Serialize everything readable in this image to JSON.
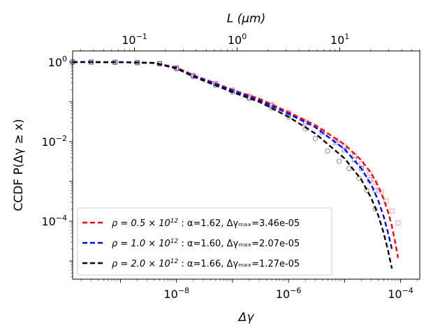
{
  "chart_data": {
    "type": "scatter",
    "xlabel": "Δγ",
    "ylabel": "CCDF  P(Δγ ≥ x)",
    "x2label": "L (μm)",
    "xscale": "log",
    "yscale": "log",
    "x2scale": "log",
    "xlim": [
      1.4e-10,
      0.00022
    ],
    "ylim": [
      3.5e-06,
      1.9
    ],
    "x2lim": [
      0.025,
      60
    ],
    "xticks": [
      {
        "value": 1e-08,
        "base": "10",
        "exp": "−8"
      },
      {
        "value": 1e-06,
        "base": "10",
        "exp": "−6"
      },
      {
        "value": 0.0001,
        "base": "10",
        "exp": "−4"
      }
    ],
    "yticks": [
      {
        "value": 1,
        "base": "10",
        "exp": "0"
      },
      {
        "value": 0.01,
        "base": "10",
        "exp": "−2"
      },
      {
        "value": 0.0001,
        "base": "10",
        "exp": "−4"
      }
    ],
    "x2ticks": [
      {
        "value": 0.1,
        "base": "10",
        "exp": "−1"
      },
      {
        "value": 1,
        "base": "10",
        "exp": "0"
      },
      {
        "value": 10,
        "base": "10",
        "exp": "1"
      }
    ],
    "legend_position": "lower-left",
    "series": [
      {
        "name": "ρ = 0.5 × 10¹² : α=1.62, Δγₘₐₓ=3.46e-05",
        "legend": {
          "rho_prefix": "ρ = 0.5 × 10",
          "rho_exp": "12",
          "fit": " : α=1.62, Δγₘₐₓ=3.46e-05"
        },
        "color": "#ff0000",
        "marker_color": "#e06080",
        "alpha": 1.62,
        "cutoff": 3.46e-05,
        "data_x": [
          1.4e-10,
          3e-10,
          8e-10,
          2e-09,
          5e-09,
          1e-08,
          2e-08,
          5e-08,
          1e-07,
          2e-07,
          5e-07,
          1e-06,
          2e-06,
          4e-06,
          7e-06,
          1e-05,
          1.5e-05,
          2e-05,
          2.8e-05,
          3.5e-05,
          4.5e-05,
          5.5e-05,
          7e-05,
          9e-05
        ],
        "data_y": [
          1.0,
          1.0,
          0.99,
          0.97,
          0.92,
          0.72,
          0.46,
          0.29,
          0.2,
          0.14,
          0.085,
          0.055,
          0.032,
          0.019,
          0.011,
          0.0075,
          0.0045,
          0.0028,
          0.0016,
          0.00095,
          0.00055,
          0.00032,
          0.00018,
          9e-05
        ],
        "fit_x": [
          1.4e-10,
          1e-09,
          4e-09,
          1e-08,
          2e-08,
          5e-08,
          1e-07,
          3e-07,
          1e-06,
          3e-06,
          1e-05,
          2e-05,
          3e-05,
          4e-05,
          5e-05,
          6e-05,
          7e-05,
          8e-05,
          9e-05
        ],
        "fit_y": [
          1.0,
          0.99,
          0.96,
          0.73,
          0.47,
          0.29,
          0.2,
          0.12,
          0.055,
          0.026,
          0.0085,
          0.0034,
          0.0016,
          0.00075,
          0.00036,
          0.00017,
          7.5e-05,
          3e-05,
          1.2e-05
        ]
      },
      {
        "name": "ρ = 1.0 × 10¹² : α=1.60, Δγₘₐₓ=2.07e-05",
        "legend": {
          "rho_prefix": "ρ = 1.0 × 10",
          "rho_exp": "12",
          "fit": " : α=1.60, Δγₘₐₓ=2.07e-05"
        },
        "color": "#0000ff",
        "marker_color": "#3a3aff",
        "alpha": 1.6,
        "cutoff": 2.07e-05,
        "data_x": [
          1.4e-10,
          3e-10,
          8e-10,
          2e-09,
          5e-09,
          1e-08,
          2e-08,
          5e-08,
          1e-07,
          2e-07,
          5e-07,
          1e-06,
          2e-06,
          4e-06,
          7e-06,
          1e-05,
          1.5e-05,
          2e-05,
          2.8e-05,
          3.5e-05
        ],
        "data_y": [
          1.0,
          1.0,
          0.99,
          0.97,
          0.91,
          0.7,
          0.45,
          0.28,
          0.19,
          0.13,
          0.08,
          0.05,
          0.029,
          0.017,
          0.0095,
          0.0062,
          0.0035,
          0.0021,
          0.0011,
          0.0006
        ],
        "fit_x": [
          1.4e-10,
          1e-09,
          4e-09,
          1e-08,
          2e-08,
          5e-08,
          1e-07,
          3e-07,
          1e-06,
          3e-06,
          1e-05,
          2e-05,
          3e-05,
          4e-05,
          5e-05,
          6e-05,
          7e-05
        ],
        "fit_y": [
          1.0,
          0.99,
          0.95,
          0.71,
          0.45,
          0.28,
          0.19,
          0.11,
          0.05,
          0.023,
          0.0065,
          0.0021,
          0.00082,
          0.00033,
          0.00013,
          5e-05,
          2e-05
        ]
      },
      {
        "name": "ρ = 2.0 × 10¹² : α=1.66, Δγₘₐₓ=1.27e-05",
        "legend": {
          "rho_prefix": "ρ = 2.0 × 10",
          "rho_exp": "12",
          "fit": " : α=1.66, Δγₘₐₓ=1.27e-05"
        },
        "color": "#000000",
        "marker_color": "#303030",
        "alpha": 1.66,
        "cutoff": 1.27e-05,
        "data_x": [
          1.4e-10,
          3e-10,
          8e-10,
          2e-09,
          5e-09,
          1e-08,
          2e-08,
          5e-08,
          1e-07,
          2e-07,
          5e-07,
          1e-06,
          2e-06,
          3e-06,
          5e-06,
          8e-06,
          1.2e-05,
          1.8e-05,
          2.5e-05,
          3.5e-05
        ],
        "data_y": [
          1.0,
          1.0,
          0.99,
          0.96,
          0.9,
          0.68,
          0.43,
          0.26,
          0.175,
          0.12,
          0.07,
          0.042,
          0.021,
          0.012,
          0.0058,
          0.0032,
          0.0021,
          0.0012,
          0.0006,
          0.0002
        ],
        "fit_x": [
          1.4e-10,
          1e-09,
          4e-09,
          1e-08,
          2e-08,
          5e-08,
          1e-07,
          3e-07,
          1e-06,
          3e-06,
          1e-05,
          2e-05,
          3e-05,
          4e-05,
          5e-05,
          6e-05,
          7e-05
        ],
        "fit_y": [
          1.0,
          0.99,
          0.94,
          0.69,
          0.43,
          0.26,
          0.175,
          0.1,
          0.042,
          0.016,
          0.0038,
          0.0011,
          0.00038,
          0.00014,
          5e-05,
          1.8e-05,
          6.5e-06
        ]
      }
    ]
  }
}
